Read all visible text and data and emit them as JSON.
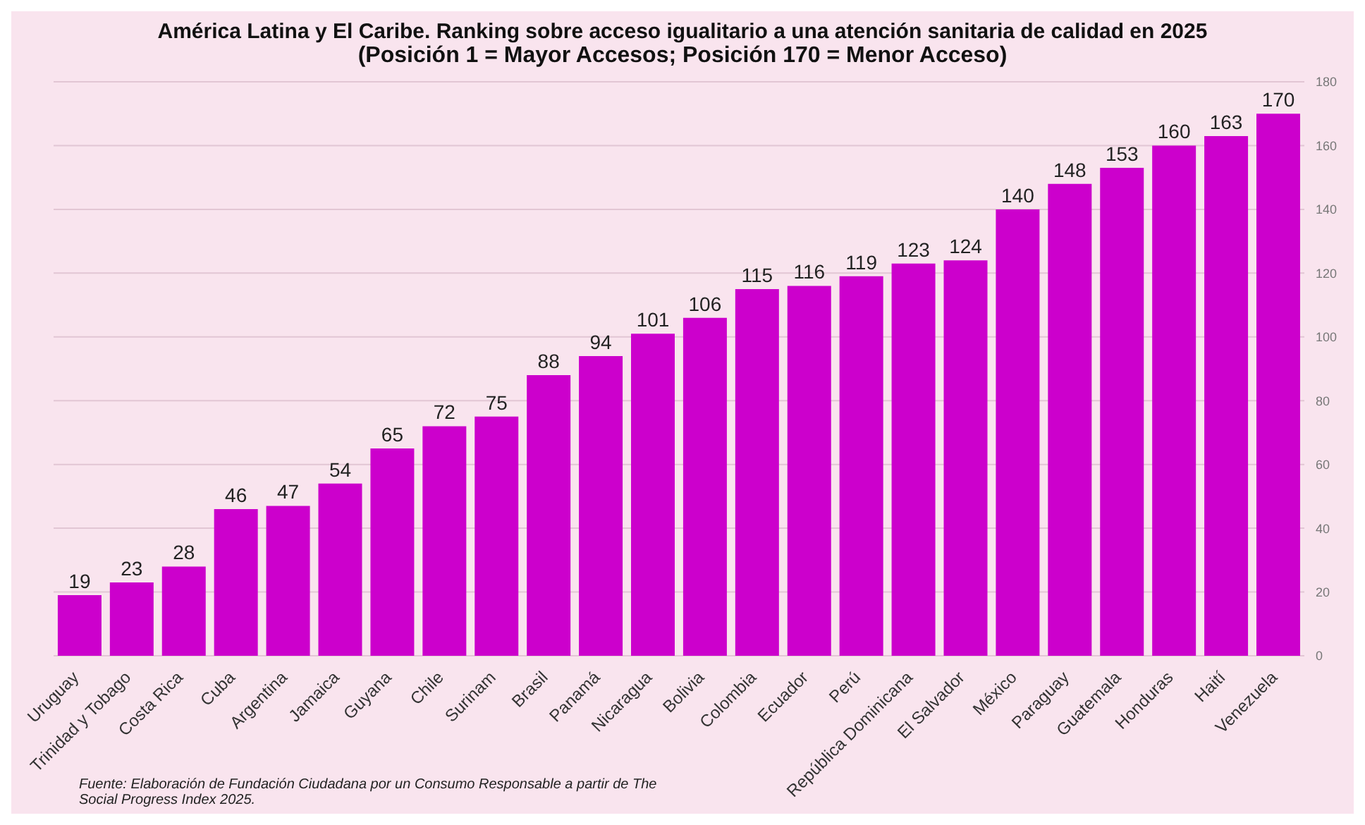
{
  "chart_data": {
    "type": "bar",
    "title": "América Latina y El Caribe. Ranking sobre acceso igualitario a una atención sanitaria de calidad en 2025",
    "subtitle": "(Posición 1 = Mayor Accesos; Posición 170 = Menor Acceso)",
    "categories": [
      "Uruguay",
      "Trinidad y Tobago",
      "Costa Rica",
      "Cuba",
      "Argentina",
      "Jamaica",
      "Guyana",
      "Chile",
      "Surinam",
      "Brasil",
      "Panamá",
      "Nicaragua",
      "Bolivia",
      "Colombia",
      "Ecuador",
      "Perú",
      "República Dominicana",
      "El Salvador",
      "México",
      "Paraguay",
      "Guatemala",
      "Honduras",
      "Haití",
      "Venezuela"
    ],
    "values": [
      19,
      23,
      28,
      46,
      47,
      54,
      65,
      72,
      75,
      88,
      94,
      101,
      106,
      115,
      116,
      119,
      123,
      124,
      140,
      148,
      153,
      160,
      163,
      170
    ],
    "color": "#cc00cc",
    "ylim": [
      0,
      180
    ],
    "yticks": [
      0,
      20,
      40,
      60,
      80,
      100,
      120,
      140,
      160,
      180
    ],
    "grid": "y",
    "data_labels": true,
    "annotations": [
      "Fuente: Elaboración de Fundación Ciudadana por un Consumo Responsable a partir de The Social Progress Index 2025."
    ]
  }
}
